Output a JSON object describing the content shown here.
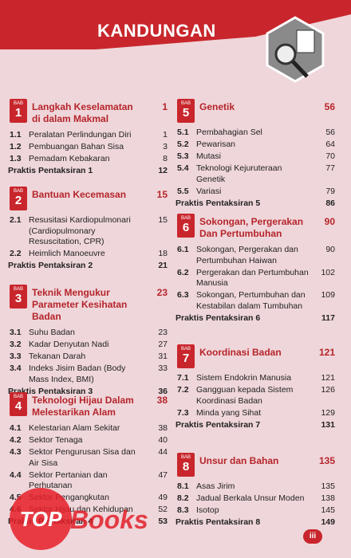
{
  "header": {
    "title": "KANDUNGAN"
  },
  "chapters": [
    {
      "badge": "BAB",
      "number": "1",
      "title": "Langkah Keselamatan di dalam Makmal",
      "page": "1",
      "items": [
        {
          "num": "1.1",
          "text": "Peralatan Perlindungan Diri",
          "page": "1"
        },
        {
          "num": "1.2",
          "text": "Pembuangan Bahan Sisa",
          "page": "3"
        },
        {
          "num": "1.3",
          "text": "Pemadam Kebakaran",
          "page": "8"
        }
      ],
      "practice": {
        "text": "Praktis Pentaksiran 1",
        "page": "12"
      }
    },
    {
      "badge": "BAB",
      "number": "2",
      "title": "Bantuan Kecemasan",
      "page": "15",
      "items": [
        {
          "num": "2.1",
          "text": "Resusitasi Kardiopulmonari (Cardiopulmonary Resuscitation, CPR)",
          "page": "15"
        },
        {
          "num": "2.2",
          "text": "Heimlich Manoeuvre",
          "page": "18"
        }
      ],
      "practice": {
        "text": "Praktis Pentaksiran 2",
        "page": "21"
      }
    },
    {
      "badge": "BAB",
      "number": "3",
      "title": "Teknik Mengukur Parameter Kesihatan Badan",
      "page": "23",
      "items": [
        {
          "num": "3.1",
          "text": "Suhu Badan",
          "page": "23"
        },
        {
          "num": "3.2",
          "text": "Kadar Denyutan Nadi",
          "page": "27"
        },
        {
          "num": "3.3",
          "text": "Tekanan Darah",
          "page": "31"
        },
        {
          "num": "3.4",
          "text": "Indeks Jisim Badan (Body Mass Index, BMI)",
          "page": "33"
        }
      ],
      "practice": {
        "text": "Praktis Pentaksiran 3",
        "page": "36"
      }
    },
    {
      "badge": "BAB",
      "number": "4",
      "title": "Teknologi Hijau Dalam Melestarikan Alam",
      "page": "38",
      "items": [
        {
          "num": "4.1",
          "text": "Kelestarian Alam Sekitar",
          "page": "38"
        },
        {
          "num": "4.2",
          "text": "Sektor Tenaga",
          "page": "40"
        },
        {
          "num": "4.3",
          "text": "Sektor Pengurusan Sisa dan Air Sisa",
          "page": "44"
        },
        {
          "num": "4.4",
          "text": "Sektor Pertanian dan Perhutanan",
          "page": "47"
        },
        {
          "num": "4.5",
          "text": "Sektor Pengangkutan",
          "page": "49"
        },
        {
          "num": "4.6",
          "text": "Sektor Hijau dan Kehidupan",
          "page": "52"
        }
      ],
      "practice": {
        "text": "Praktis Pentaksiran 4",
        "page": "53"
      }
    },
    {
      "badge": "BAB",
      "number": "5",
      "title": "Genetik",
      "page": "56",
      "items": [
        {
          "num": "5.1",
          "text": "Pembahagian Sel",
          "page": "56"
        },
        {
          "num": "5.2",
          "text": "Pewarisan",
          "page": "64"
        },
        {
          "num": "5.3",
          "text": "Mutasi",
          "page": "70"
        },
        {
          "num": "5.4",
          "text": "Teknologi Kejuruteraan Genetik",
          "page": "77"
        },
        {
          "num": "5.5",
          "text": "Variasi",
          "page": "79"
        }
      ],
      "practice": {
        "text": "Praktis Pentaksiran 5",
        "page": "86"
      }
    },
    {
      "badge": "BAB",
      "number": "6",
      "title": "Sokongan, Pergerakan Dan Pertumbuhan",
      "page": "90",
      "items": [
        {
          "num": "6.1",
          "text": "Sokongan, Pergerakan dan Pertumbuhan Haiwan",
          "page": "90"
        },
        {
          "num": "6.2",
          "text": "Pergerakan dan Pertumbuhan Manusia",
          "page": "102"
        },
        {
          "num": "6.3",
          "text": "Sokongan, Pertumbuhan dan Kestabilan dalam Tumbuhan",
          "page": "109"
        }
      ],
      "practice": {
        "text": "Praktis Pentaksiran 6",
        "page": "117"
      }
    },
    {
      "badge": "BAB",
      "number": "7",
      "title": "Koordinasi Badan",
      "page": "121",
      "items": [
        {
          "num": "7.1",
          "text": "Sistem Endokrin Manusia",
          "page": "121"
        },
        {
          "num": "7.2",
          "text": "Gangguan kepada Sistem Koordinasi Badan",
          "page": "126"
        },
        {
          "num": "7.3",
          "text": "Minda yang Sihat",
          "page": "129"
        }
      ],
      "practice": {
        "text": "Praktis Pentaksiran 7",
        "page": "131"
      }
    },
    {
      "badge": "BAB",
      "number": "8",
      "title": "Unsur dan Bahan",
      "page": "135",
      "items": [
        {
          "num": "8.1",
          "text": "Asas Jirim",
          "page": "135"
        },
        {
          "num": "8.2",
          "text": "Jadual Berkala Unsur Moden",
          "page": "138"
        },
        {
          "num": "8.3",
          "text": "Isotop",
          "page": "145"
        }
      ],
      "practice": {
        "text": "Praktis Pentaksiran 8",
        "page": "149"
      }
    }
  ],
  "footer": {
    "page": "iii"
  },
  "watermark": {
    "top": "TOP",
    "books": "Books"
  }
}
